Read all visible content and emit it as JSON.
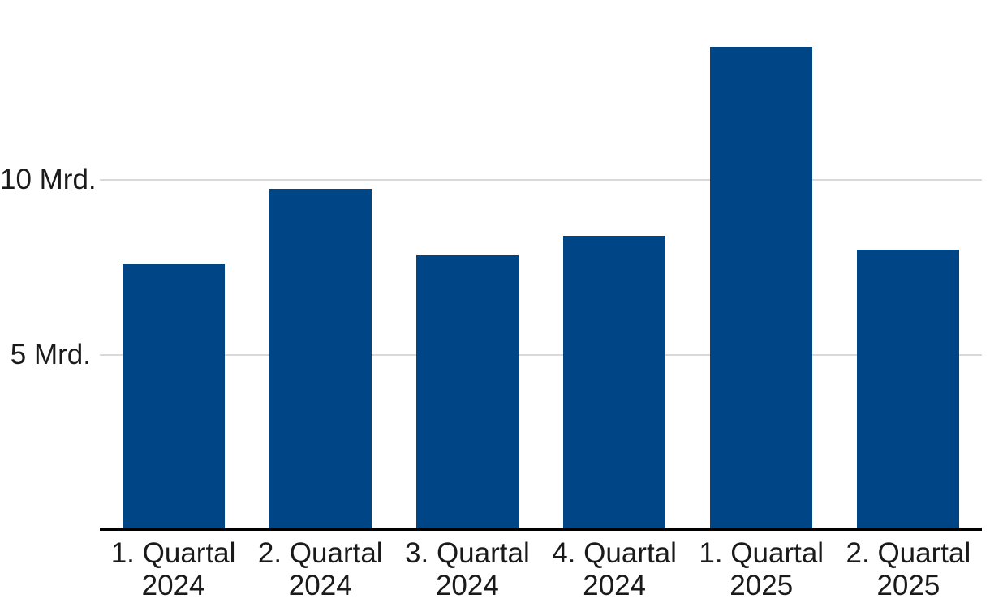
{
  "chart_data": {
    "type": "bar",
    "categories": [
      [
        "1. Quartal",
        "2024"
      ],
      [
        "2. Quartal",
        "2024"
      ],
      [
        "3. Quartal",
        "2024"
      ],
      [
        "4. Quartal",
        "2024"
      ],
      [
        "1. Quartal",
        "2025"
      ],
      [
        "2. Quartal",
        "2025"
      ]
    ],
    "values": [
      7.6,
      9.75,
      7.85,
      8.4,
      13.8,
      8.0
    ],
    "unit": "Mrd.",
    "yticks": [
      {
        "value": 5,
        "label": "5 Mrd."
      },
      {
        "value": 10,
        "label": "10 Mrd."
      }
    ],
    "ylim": [
      0,
      15.1
    ],
    "grid": true,
    "legend_position": "none",
    "bar_color": "#004586",
    "gridline_color": "#d9d9d9",
    "axis_line_color": "#000000",
    "label_color": "#1a1a1a"
  }
}
